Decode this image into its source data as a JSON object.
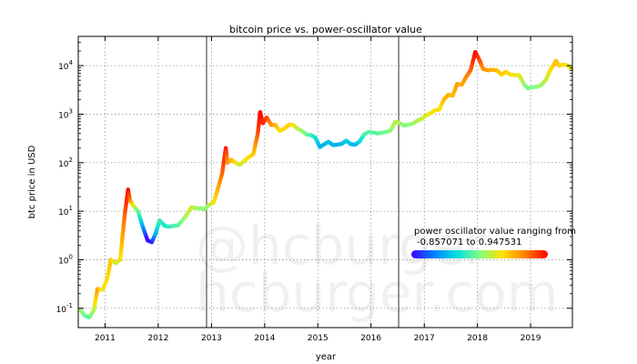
{
  "chart_data": {
    "type": "scatter",
    "title": "bitcoin price vs. power-oscillator value",
    "xlabel": "year",
    "ylabel": "btc price in USD",
    "yscale": "log",
    "xlim": [
      "2010-07-01",
      "2019-10-15"
    ],
    "ylim": [
      0.04,
      40000
    ],
    "x_ticks": [
      "2011",
      "2012",
      "2013",
      "2014",
      "2015",
      "2016",
      "2017",
      "2018",
      "2019"
    ],
    "y_ticks": [
      {
        "base": "10",
        "exp": "-1",
        "value": 0.1
      },
      {
        "base": "10",
        "exp": "0",
        "value": 1
      },
      {
        "base": "10",
        "exp": "1",
        "value": 10
      },
      {
        "base": "10",
        "exp": "2",
        "value": 100
      },
      {
        "base": "10",
        "exp": "3",
        "value": 1000
      },
      {
        "base": "10",
        "exp": "4",
        "value": 10000
      }
    ],
    "grid": true,
    "halving_lines": [
      "2012-11-28",
      "2016-07-09"
    ],
    "colormap": [
      "#4000ff",
      "#0080ff",
      "#00e0e0",
      "#80ff80",
      "#ffe000",
      "#ff8000",
      "#ff0000"
    ],
    "legend": {
      "title": "power oscillator value ranging from",
      "range_label": "-0.857071 to 0.947531",
      "min": -0.857071,
      "max": 0.947531,
      "placement": "center-right"
    },
    "watermark": [
      "@hcburger",
      "hcburger.com"
    ],
    "series": [
      {
        "points": [
          [
            "2010-07-17",
            0.09,
            0.1
          ],
          [
            "2010-08-15",
            0.07,
            0.0
          ],
          [
            "2010-09-15",
            0.065,
            -0.05
          ],
          [
            "2010-10-15",
            0.09,
            0.15
          ],
          [
            "2010-11-10",
            0.25,
            0.55
          ],
          [
            "2010-12-15",
            0.24,
            0.3
          ],
          [
            "2011-01-15",
            0.4,
            0.35
          ],
          [
            "2011-02-10",
            1.0,
            0.45
          ],
          [
            "2011-03-15",
            0.85,
            0.2
          ],
          [
            "2011-04-15",
            1.0,
            0.3
          ],
          [
            "2011-05-15",
            8,
            0.7
          ],
          [
            "2011-06-08",
            28,
            0.947531
          ],
          [
            "2011-06-20",
            17,
            0.7
          ],
          [
            "2011-07-15",
            13,
            0.3
          ],
          [
            "2011-08-15",
            10,
            0.0
          ],
          [
            "2011-09-15",
            5,
            -0.4
          ],
          [
            "2011-10-20",
            2.5,
            -0.857071
          ],
          [
            "2011-11-18",
            2.3,
            -0.8
          ],
          [
            "2011-12-15",
            3.5,
            -0.4
          ],
          [
            "2012-01-10",
            6.5,
            -0.1
          ],
          [
            "2012-02-15",
            5,
            -0.2
          ],
          [
            "2012-03-15",
            4.8,
            -0.15
          ],
          [
            "2012-04-15",
            5,
            -0.1
          ],
          [
            "2012-05-15",
            5.1,
            -0.05
          ],
          [
            "2012-06-15",
            6.5,
            0.05
          ],
          [
            "2012-07-15",
            8.5,
            0.15
          ],
          [
            "2012-08-15",
            12,
            0.25
          ],
          [
            "2012-09-15",
            11.5,
            0.15
          ],
          [
            "2012-10-15",
            11.5,
            0.1
          ],
          [
            "2012-11-15",
            11,
            0.05
          ],
          [
            "2012-12-15",
            13.5,
            0.15
          ],
          [
            "2013-01-15",
            15,
            0.3
          ],
          [
            "2013-02-15",
            30,
            0.5
          ],
          [
            "2013-03-15",
            60,
            0.7
          ],
          [
            "2013-04-09",
            200,
            0.9
          ],
          [
            "2013-04-20",
            100,
            0.6
          ],
          [
            "2013-05-15",
            115,
            0.5
          ],
          [
            "2013-06-15",
            100,
            0.35
          ],
          [
            "2013-07-15",
            90,
            0.2
          ],
          [
            "2013-08-15",
            110,
            0.3
          ],
          [
            "2013-09-15",
            130,
            0.35
          ],
          [
            "2013-10-15",
            150,
            0.4
          ],
          [
            "2013-11-15",
            400,
            0.75
          ],
          [
            "2013-12-01",
            1100,
            0.95
          ],
          [
            "2013-12-20",
            650,
            0.85
          ],
          [
            "2014-01-15",
            850,
            0.8
          ],
          [
            "2014-02-15",
            600,
            0.6
          ],
          [
            "2014-03-15",
            600,
            0.5
          ],
          [
            "2014-04-15",
            450,
            0.35
          ],
          [
            "2014-05-15",
            500,
            0.35
          ],
          [
            "2014-06-15",
            600,
            0.4
          ],
          [
            "2014-07-15",
            600,
            0.35
          ],
          [
            "2014-08-15",
            500,
            0.2
          ],
          [
            "2014-09-15",
            450,
            0.1
          ],
          [
            "2014-10-15",
            380,
            0.0
          ],
          [
            "2014-11-15",
            370,
            -0.1
          ],
          [
            "2014-12-15",
            330,
            -0.2
          ],
          [
            "2015-01-15",
            210,
            -0.4
          ],
          [
            "2015-02-15",
            240,
            -0.4
          ],
          [
            "2015-03-15",
            270,
            -0.35
          ],
          [
            "2015-04-15",
            230,
            -0.4
          ],
          [
            "2015-05-15",
            235,
            -0.4
          ],
          [
            "2015-06-15",
            245,
            -0.4
          ],
          [
            "2015-07-15",
            285,
            -0.3
          ],
          [
            "2015-08-15",
            240,
            -0.35
          ],
          [
            "2015-09-15",
            235,
            -0.4
          ],
          [
            "2015-10-15",
            275,
            -0.3
          ],
          [
            "2015-11-15",
            380,
            -0.1
          ],
          [
            "2015-12-15",
            430,
            -0.05
          ],
          [
            "2016-01-15",
            420,
            -0.05
          ],
          [
            "2016-02-15",
            400,
            -0.05
          ],
          [
            "2016-03-15",
            415,
            0.0
          ],
          [
            "2016-04-15",
            430,
            0.0
          ],
          [
            "2016-05-15",
            460,
            0.05
          ],
          [
            "2016-06-15",
            700,
            0.2
          ],
          [
            "2016-07-15",
            660,
            0.15
          ],
          [
            "2016-08-15",
            580,
            0.05
          ],
          [
            "2016-09-15",
            610,
            0.05
          ],
          [
            "2016-10-15",
            640,
            0.1
          ],
          [
            "2016-11-15",
            740,
            0.15
          ],
          [
            "2016-12-15",
            800,
            0.2
          ],
          [
            "2017-01-15",
            950,
            0.25
          ],
          [
            "2017-02-15",
            1050,
            0.3
          ],
          [
            "2017-03-15",
            1200,
            0.35
          ],
          [
            "2017-04-15",
            1250,
            0.3
          ],
          [
            "2017-05-15",
            2000,
            0.45
          ],
          [
            "2017-06-15",
            2500,
            0.5
          ],
          [
            "2017-07-15",
            2400,
            0.45
          ],
          [
            "2017-08-15",
            4200,
            0.55
          ],
          [
            "2017-09-15",
            4000,
            0.5
          ],
          [
            "2017-10-15",
            5800,
            0.6
          ],
          [
            "2017-11-15",
            8000,
            0.7
          ],
          [
            "2017-12-17",
            19000,
            0.94
          ],
          [
            "2018-01-15",
            13000,
            0.8
          ],
          [
            "2018-02-10",
            8500,
            0.6
          ],
          [
            "2018-03-15",
            8000,
            0.55
          ],
          [
            "2018-04-15",
            8200,
            0.5
          ],
          [
            "2018-05-15",
            8000,
            0.45
          ],
          [
            "2018-06-15",
            6500,
            0.4
          ],
          [
            "2018-07-15",
            7500,
            0.4
          ],
          [
            "2018-08-15",
            6500,
            0.35
          ],
          [
            "2018-09-15",
            6400,
            0.3
          ],
          [
            "2018-10-15",
            6300,
            0.3
          ],
          [
            "2018-11-20",
            4000,
            0.1
          ],
          [
            "2018-12-15",
            3400,
            0.0
          ],
          [
            "2019-01-15",
            3600,
            0.05
          ],
          [
            "2019-02-15",
            3650,
            0.05
          ],
          [
            "2019-03-15",
            3950,
            0.1
          ],
          [
            "2019-04-15",
            5100,
            0.2
          ],
          [
            "2019-05-15",
            8000,
            0.35
          ],
          [
            "2019-06-25",
            12500,
            0.45
          ],
          [
            "2019-07-15",
            10000,
            0.4
          ],
          [
            "2019-08-15",
            10500,
            0.35
          ],
          [
            "2019-09-15",
            10000,
            0.3
          ],
          [
            "2019-10-10",
            8500,
            0.25
          ]
        ]
      }
    ]
  }
}
